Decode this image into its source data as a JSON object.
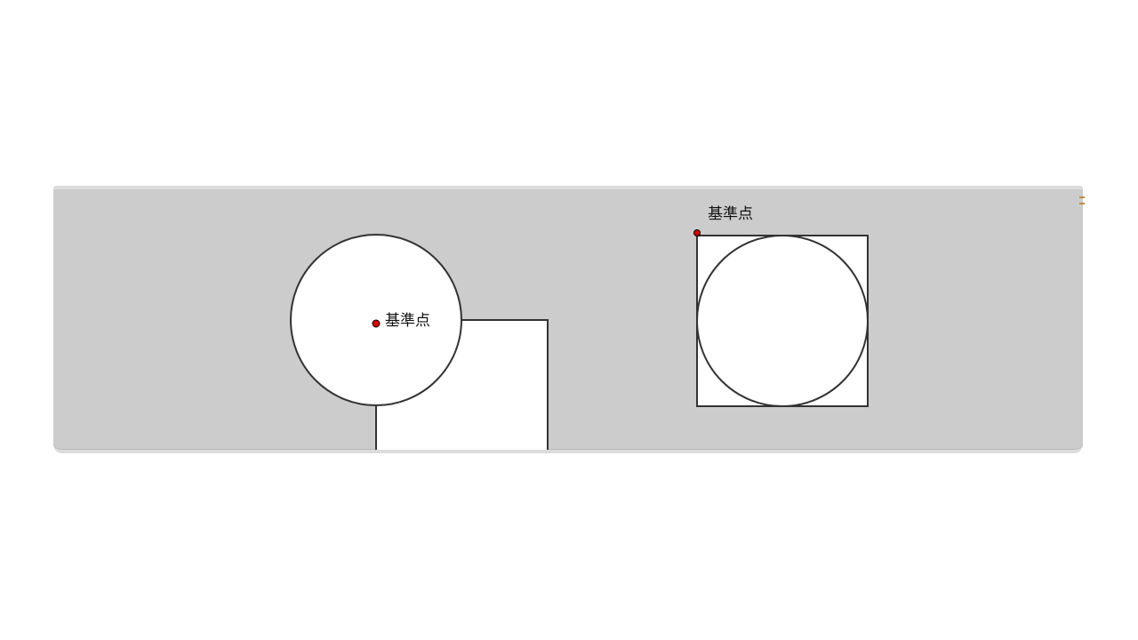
{
  "diagrams": [
    {
      "id": "left",
      "reference_label": "基準点",
      "anchor": "center-of-circle"
    },
    {
      "id": "right",
      "reference_label": "基準点",
      "anchor": "top-left-of-square"
    }
  ],
  "colors": {
    "panel_background": "#cccccc",
    "shape_fill": "#ffffff",
    "shape_stroke": "#333333",
    "reference_point": "#dd0000"
  }
}
